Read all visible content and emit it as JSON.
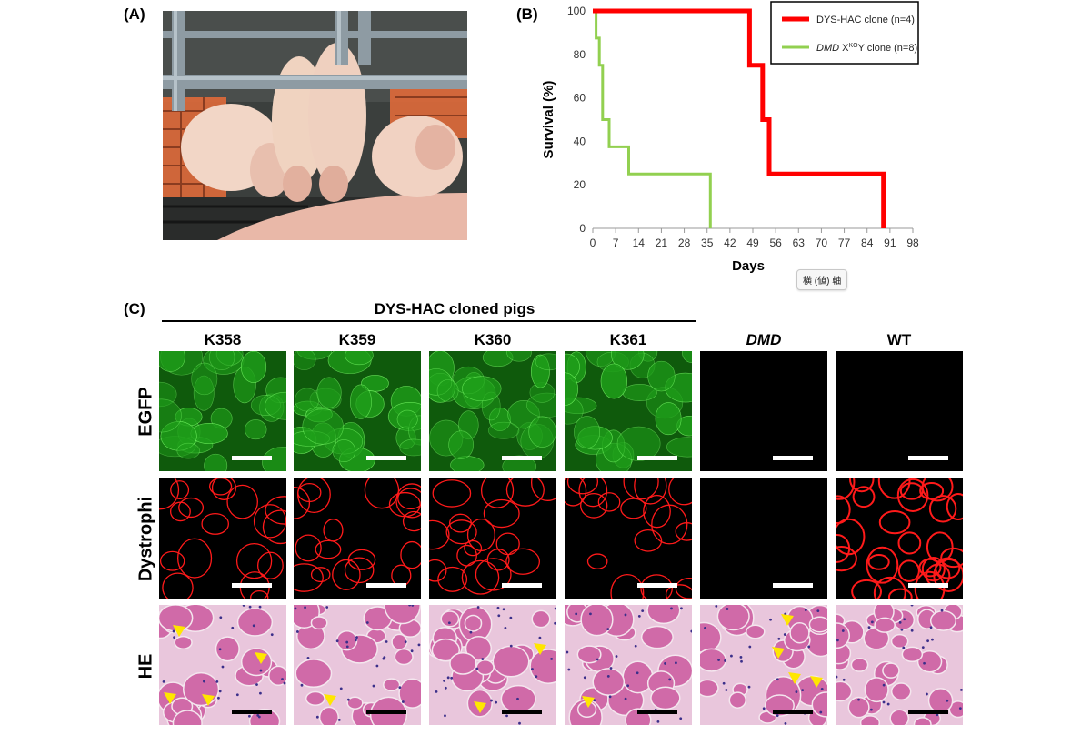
{
  "panels": {
    "a_label": "(A)",
    "b_label": "(B)",
    "c_label": "(C)"
  },
  "chart_data": {
    "type": "line",
    "step": true,
    "xlabel": "Days",
    "ylabel": "Survival (%)",
    "xlim": [
      0,
      98
    ],
    "ylim": [
      0,
      100
    ],
    "xticks": [
      0,
      7,
      14,
      21,
      28,
      35,
      42,
      49,
      56,
      63,
      70,
      77,
      84,
      91,
      98
    ],
    "yticks": [
      0,
      20,
      40,
      60,
      80,
      100
    ],
    "legend_position": "top-right",
    "series": [
      {
        "name": "DYS-HAC clone (n=4)",
        "color": "#ff0000",
        "points": [
          [
            0,
            100
          ],
          [
            48,
            100
          ],
          [
            48,
            75
          ],
          [
            52,
            75
          ],
          [
            52,
            50
          ],
          [
            54,
            50
          ],
          [
            54,
            25
          ],
          [
            89,
            25
          ],
          [
            89,
            0
          ]
        ]
      },
      {
        "name": "DMD XKOY clone (n=8)",
        "name_parts": {
          "italic": "DMD",
          "pre": " X",
          "sup": "KO",
          "post": "Y clone (n=8)"
        },
        "color": "#92d050",
        "points": [
          [
            0,
            100
          ],
          [
            1,
            100
          ],
          [
            1,
            87.5
          ],
          [
            2,
            87.5
          ],
          [
            2,
            75
          ],
          [
            3,
            75
          ],
          [
            3,
            50
          ],
          [
            5,
            50
          ],
          [
            5,
            37.5
          ],
          [
            11,
            37.5
          ],
          [
            11,
            25
          ],
          [
            36,
            25
          ],
          [
            36,
            0
          ]
        ]
      }
    ]
  },
  "tooltip": "横 (値) 軸",
  "group_label": "DYS-HAC cloned pigs",
  "columns": [
    "K358",
    "K359",
    "K360",
    "K361",
    "DMD",
    "WT"
  ],
  "rows": [
    "EGFP",
    "Dystrophi",
    "HE"
  ],
  "colors": {
    "egfp": "#1fa01a",
    "dystrophin": "#ff1a1a",
    "he_fiber": "#d06aa8",
    "arrowhead": "#ffe600"
  }
}
